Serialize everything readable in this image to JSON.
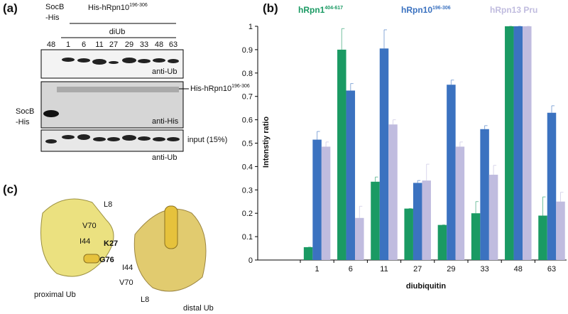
{
  "panel_a": {
    "label": "(a)",
    "socb_header": [
      "SocB",
      "-His"
    ],
    "his_header": {
      "text": "His-hRpn10",
      "sup": "196-306"
    },
    "diub": "diUb",
    "lanes": [
      "48",
      "1",
      "6",
      "11",
      "27",
      "29",
      "33",
      "48",
      "63"
    ],
    "blot1_label": "anti-Ub",
    "blot2_arrow": {
      "text": "His-hRpn10",
      "sup": "196-306"
    },
    "blot2_label": "anti-His",
    "blot2_side": [
      "SocB",
      "-His"
    ],
    "blot3_side": "input (15%)",
    "blot3_label": "anti-Ub"
  },
  "chart_data": {
    "type": "bar",
    "panel_label": "(b)",
    "y_label": "Intenstiy ratio",
    "x_label": "diubiquitin",
    "categories": [
      "1",
      "6",
      "11",
      "27",
      "29",
      "33",
      "48",
      "63"
    ],
    "series": [
      {
        "name": "hRpn1",
        "sup": "404-617",
        "color": "#1a9a63",
        "values": [
          0.055,
          0.9,
          0.335,
          0.22,
          0.15,
          0.2,
          1.0,
          0.19
        ],
        "errors": [
          0,
          0.09,
          0.02,
          0,
          0,
          0.05,
          0,
          0.08
        ]
      },
      {
        "name": "hRpn10",
        "sup": "196-306",
        "color": "#3b72c0",
        "values": [
          0.515,
          0.725,
          0.905,
          0.33,
          0.75,
          0.56,
          1.0,
          0.63
        ],
        "errors": [
          0.035,
          0.03,
          0.08,
          0.01,
          0.02,
          0.015,
          0,
          0.03
        ]
      },
      {
        "name": "hRpn13 Pru",
        "color": "#c0bcdf",
        "values": [
          0.485,
          0.18,
          0.58,
          0.34,
          0.485,
          0.365,
          1.0,
          0.25
        ],
        "errors": [
          0.02,
          0.05,
          0.02,
          0.07,
          0.02,
          0.04,
          0,
          0.04
        ]
      }
    ],
    "ylim": [
      0,
      1
    ],
    "yticks": [
      0,
      0.1,
      0.2,
      0.3,
      0.4,
      0.5,
      0.6,
      0.7,
      0.8,
      0.9,
      1
    ]
  },
  "panel_c": {
    "label": "(c)",
    "residues": [
      "L8",
      "V70",
      "I44",
      "K27",
      "G76",
      "I44",
      "V70",
      "L8"
    ],
    "proximal": "proximal Ub",
    "distal": "distal Ub"
  }
}
